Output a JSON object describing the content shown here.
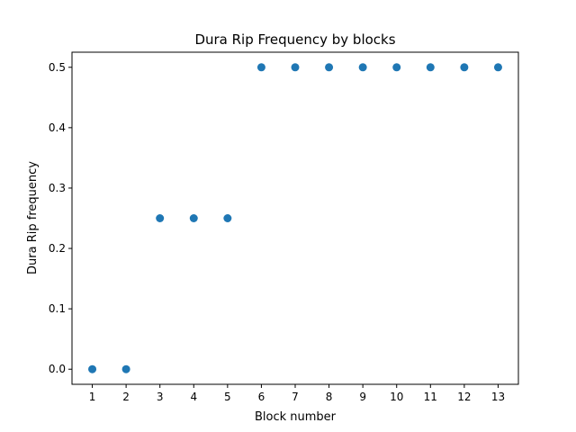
{
  "chart_data": {
    "type": "scatter",
    "title": "Dura Rip Frequency by blocks",
    "xlabel": "Block number",
    "ylabel": "Dura Rip frequency",
    "x": [
      1,
      2,
      3,
      4,
      5,
      6,
      7,
      8,
      9,
      10,
      11,
      12,
      13
    ],
    "y": [
      0.0,
      0.0,
      0.25,
      0.25,
      0.25,
      0.5,
      0.5,
      0.5,
      0.5,
      0.5,
      0.5,
      0.5,
      0.5
    ],
    "xticks": [
      "1",
      "2",
      "3",
      "4",
      "5",
      "6",
      "7",
      "8",
      "9",
      "10",
      "11",
      "12",
      "13"
    ],
    "yticks": [
      "0.0",
      "0.1",
      "0.2",
      "0.3",
      "0.4",
      "0.5"
    ],
    "xlim": [
      0.4,
      13.6
    ],
    "ylim": [
      -0.025,
      0.525
    ],
    "grid": false,
    "marker_color": "#1f77b4"
  }
}
